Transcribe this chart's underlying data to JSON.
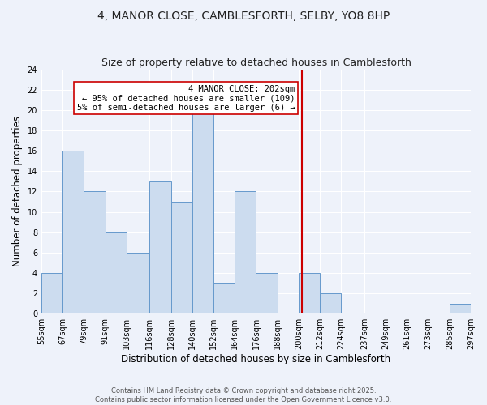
{
  "title": "4, MANOR CLOSE, CAMBLESFORTH, SELBY, YO8 8HP",
  "subtitle": "Size of property relative to detached houses in Camblesforth",
  "xlabel": "Distribution of detached houses by size in Camblesforth",
  "ylabel": "Number of detached properties",
  "bin_edges": [
    55,
    67,
    79,
    91,
    103,
    116,
    128,
    140,
    152,
    164,
    176,
    188,
    200,
    212,
    224,
    237,
    249,
    261,
    273,
    285,
    297
  ],
  "bin_heights": [
    4,
    16,
    12,
    8,
    6,
    13,
    11,
    20,
    3,
    12,
    4,
    0,
    4,
    2,
    0,
    0,
    0,
    0,
    0,
    1
  ],
  "bar_color": "#ccdcef",
  "bar_edgecolor": "#6699cc",
  "property_value": 202,
  "vline_color": "#cc0000",
  "annotation_text": "4 MANOR CLOSE: 202sqm\n← 95% of detached houses are smaller (109)\n5% of semi-detached houses are larger (6) →",
  "annotation_box_edgecolor": "#cc0000",
  "annotation_box_facecolor": "#ffffff",
  "ylim": [
    0,
    24
  ],
  "yticks": [
    0,
    2,
    4,
    6,
    8,
    10,
    12,
    14,
    16,
    18,
    20,
    22,
    24
  ],
  "tick_labels": [
    "55sqm",
    "67sqm",
    "79sqm",
    "91sqm",
    "103sqm",
    "116sqm",
    "128sqm",
    "140sqm",
    "152sqm",
    "164sqm",
    "176sqm",
    "188sqm",
    "200sqm",
    "212sqm",
    "224sqm",
    "237sqm",
    "249sqm",
    "261sqm",
    "273sqm",
    "285sqm",
    "297sqm"
  ],
  "footer_line1": "Contains HM Land Registry data © Crown copyright and database right 2025.",
  "footer_line2": "Contains public sector information licensed under the Open Government Licence v3.0.",
  "background_color": "#eef2fa",
  "grid_color": "#ffffff",
  "title_fontsize": 10,
  "subtitle_fontsize": 9,
  "axis_label_fontsize": 8.5,
  "tick_fontsize": 7,
  "annot_fontsize": 7.5,
  "footer_fontsize": 6
}
